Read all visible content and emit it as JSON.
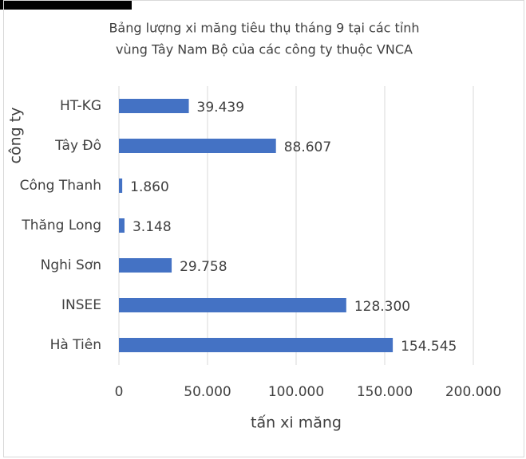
{
  "chart_data": {
    "type": "bar",
    "orientation": "horizontal",
    "title": "Bảng lượng xi măng tiêu thụ tháng 9 tại các tỉnh vùng Tây Nam Bộ của các công ty thuộc VNCA",
    "title_lines": [
      "Bảng lượng xi măng tiêu thụ tháng 9 tại các tỉnh",
      "vùng Tây Nam Bộ của các công ty thuộc VNCA"
    ],
    "x_label": "tấn xi măng",
    "y_label": "công ty",
    "categories": [
      "HT-KG",
      "Tây Đô",
      "Công Thanh",
      "Thăng Long",
      "Nghi Sơn",
      "INSEE",
      "Hà Tiên"
    ],
    "values": [
      39439,
      88607,
      1860,
      3148,
      29758,
      128300,
      154545
    ],
    "value_labels": [
      "39.439",
      "88.607",
      "1.860",
      "3.148",
      "29.758",
      "128.300",
      "154.545"
    ],
    "color": "#4472c4",
    "xlim": [
      0,
      200000
    ],
    "xticks": [
      0,
      {
        "value": 50000,
        "label": "50.000"
      },
      {
        "value": 100000,
        "label": "100.000"
      },
      {
        "value": 150000,
        "label": "150.000"
      },
      {
        "value": 200000,
        "label": "200.000"
      }
    ],
    "grid": true
  }
}
